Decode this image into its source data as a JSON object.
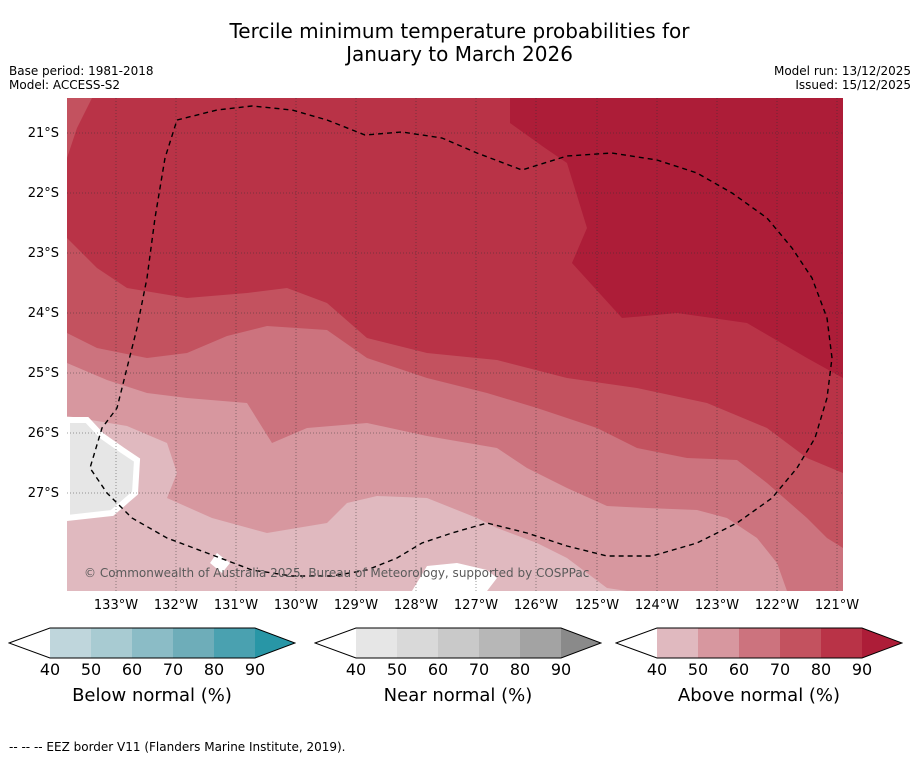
{
  "title": {
    "line1": "Tercile minimum temperature probabilities for",
    "line2": "January to March 2026"
  },
  "meta": {
    "base_period": "Base period: 1981-2018",
    "model": "Model: ACCESS-S2",
    "model_run": "Model run: 13/12/2025",
    "issued": "Issued: 15/12/2025"
  },
  "map": {
    "lat_labels": [
      "21°S",
      "22°S",
      "23°S",
      "24°S",
      "25°S",
      "26°S",
      "27°S"
    ],
    "lon_labels": [
      "133°W",
      "132°W",
      "131°W",
      "130°W",
      "129°W",
      "128°W",
      "127°W",
      "126°W",
      "125°W",
      "124°W",
      "123°W",
      "122°W",
      "121°W"
    ],
    "copyright": "© Commonwealth of Australia 2025, Bureau of Meteorology, supported by COSPPac"
  },
  "colorbars": [
    {
      "title": "Below normal (%)",
      "ticks": [
        "40",
        "50",
        "60",
        "70",
        "80",
        "90"
      ],
      "colors": [
        "#ffffff",
        "#bfd6dc",
        "#a8cbd2",
        "#8bbcc6",
        "#6eadb9",
        "#4aa1b0",
        "#2896a6"
      ]
    },
    {
      "title": "Near normal (%)",
      "ticks": [
        "40",
        "50",
        "60",
        "70",
        "80",
        "90"
      ],
      "colors": [
        "#ffffff",
        "#e6e6e6",
        "#d9d9d9",
        "#c9c9c9",
        "#b7b7b7",
        "#a3a3a3",
        "#8a8a8a"
      ]
    },
    {
      "title": "Above normal (%)",
      "ticks": [
        "40",
        "50",
        "60",
        "70",
        "80",
        "90"
      ],
      "colors": [
        "#ffffff",
        "#e0b9bf",
        "#d7979f",
        "#cc737e",
        "#c3525f",
        "#b93347",
        "#ad1d38"
      ]
    }
  ],
  "footer": {
    "eez": "--  --  -- EEZ border V11 (Flanders Marine Institute, 2019)."
  }
}
